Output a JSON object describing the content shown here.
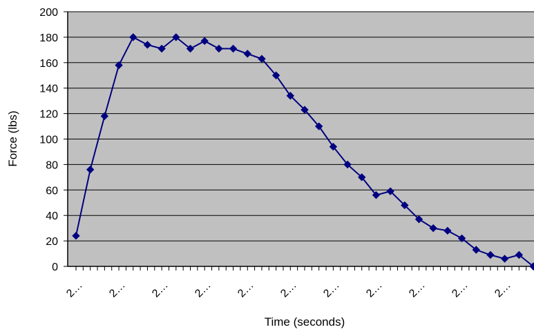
{
  "chart_data": {
    "type": "line",
    "ylabel": "Force (lbs)",
    "xlabel": "Time (seconds)",
    "ylim": [
      0,
      200
    ],
    "yticks": [
      0,
      20,
      40,
      60,
      80,
      100,
      120,
      140,
      160,
      180,
      200
    ],
    "x_tick_labels": [
      "2…",
      "2…",
      "2…",
      "2…",
      "2…",
      "2…",
      "2…",
      "2…",
      "2…",
      "2…",
      "2…"
    ],
    "grid": true,
    "plot_background": "#c0c0c0",
    "line_color": "#000080",
    "marker": "diamond",
    "series": [
      {
        "values": [
          24,
          76,
          118,
          158,
          180,
          174,
          171,
          180,
          171,
          177,
          171,
          171,
          167,
          163,
          150,
          134,
          123,
          110,
          94,
          80,
          70,
          56,
          59,
          48,
          37,
          30,
          28,
          22,
          13,
          9,
          6,
          9,
          0
        ]
      }
    ]
  }
}
